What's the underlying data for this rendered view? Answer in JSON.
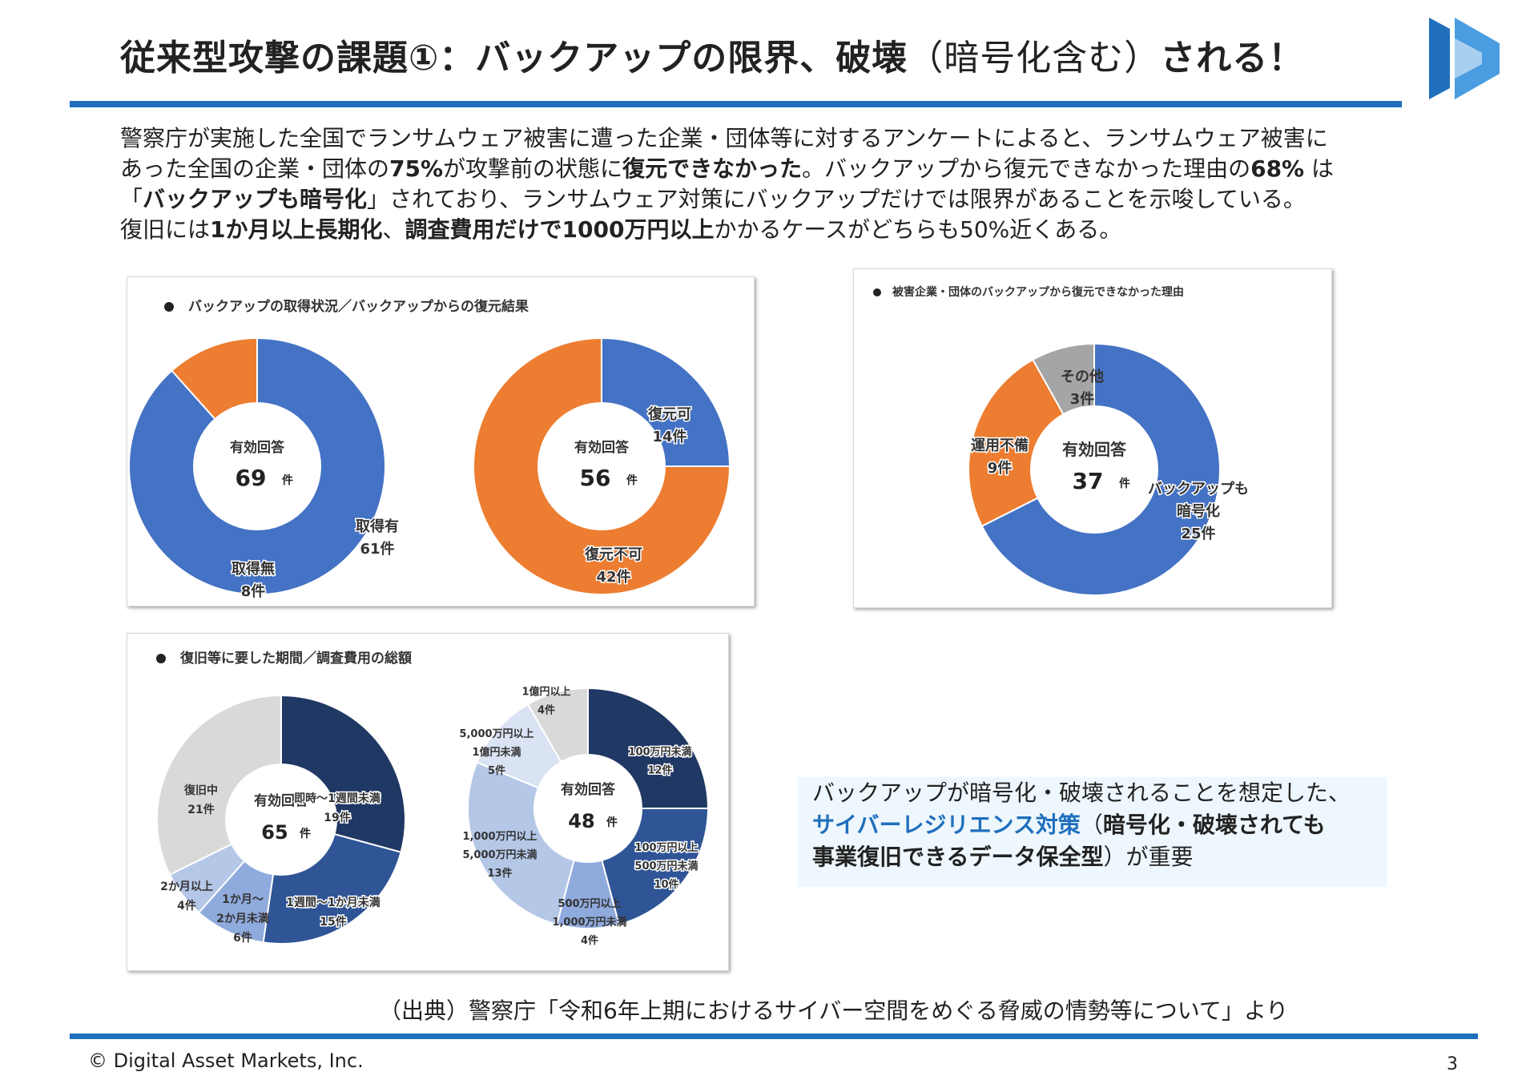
{
  "header": {
    "title_bold_1": "従来型攻撃の課題①：バックアップの限界、破壊",
    "title_normal": "（暗号化含む）",
    "title_bold_2": "される！"
  },
  "intro": {
    "line1": "警察庁が実施した全国でランサムウェア被害に遭った企業・団体等に対するアンケートによると、ランサムウェア被害に",
    "line2_a": "あった全国の企業・団体の",
    "line2_b": "75%",
    "line2_c": "が攻撃前の状態に",
    "line2_d": "復元できなかった",
    "line2_e": "。バックアップから復元できなかった理由の",
    "line2_f": "68%",
    "line2_g": " は",
    "line3_a": "「",
    "line3_b": "バックアップも暗号化",
    "line3_c": "」されており、ランサムウェア対策にバックアップだけでは限界があることを示唆している。",
    "line4_a": "復旧には",
    "line4_b": "1か月以上長期化",
    "line4_c": "、",
    "line4_d": "調査費用だけで1000万円以上",
    "line4_e": "かかるケースがどちらも50%近くある。"
  },
  "panels": {
    "backup_title": "バックアップの取得状況／バックアップからの復元結果",
    "reason_title": "被害企業・団体のバックアップから復元できなかった理由",
    "recovery_title": "復旧等に要した期間／調査費用の総額"
  },
  "chart_data": [
    {
      "type": "pie",
      "donut": true,
      "center_label": "有効回答",
      "center_value": "69",
      "center_unit": "件",
      "slices": [
        {
          "label": "取得有",
          "value": 61,
          "value_text": "61件",
          "color": "#4472c4"
        },
        {
          "label": "取得無",
          "value": 8,
          "value_text": "8件",
          "color": "#ed7d31"
        }
      ]
    },
    {
      "type": "pie",
      "donut": true,
      "center_label": "有効回答",
      "center_value": "56",
      "center_unit": "件",
      "slices": [
        {
          "label": "復元可",
          "value": 14,
          "value_text": "14件",
          "color": "#4472c4"
        },
        {
          "label": "復元不可",
          "value": 42,
          "value_text": "42件",
          "color": "#ed7d31"
        }
      ]
    },
    {
      "type": "pie",
      "donut": true,
      "center_label": "有効回答",
      "center_value": "37",
      "center_unit": "件",
      "slices": [
        {
          "label": "バックアップも暗号化",
          "label_line1": "バックアップも",
          "label_line2": "暗号化",
          "value": 25,
          "value_text": "25件",
          "color": "#4472c4"
        },
        {
          "label": "運用不備",
          "value": 9,
          "value_text": "9件",
          "color": "#ed7d31"
        },
        {
          "label": "その他",
          "value": 3,
          "value_text": "3件",
          "color": "#a5a5a5"
        }
      ]
    },
    {
      "type": "pie",
      "donut": true,
      "center_label": "有効回答",
      "center_value": "65",
      "center_unit": "件",
      "slices": [
        {
          "label": "即時～1週間未満",
          "value": 19,
          "value_text": "19件",
          "color": "#203864"
        },
        {
          "label": "1週間～1か月未満",
          "value": 15,
          "value_text": "15件",
          "color": "#2f5597"
        },
        {
          "label": "1か月～2か月未満",
          "label_line1": "1か月～",
          "label_line2": "2か月未満",
          "value": 6,
          "value_text": "6件",
          "color": "#8faadc"
        },
        {
          "label": "2か月以上",
          "value": 4,
          "value_text": "4件",
          "color": "#b4c7e7"
        },
        {
          "label": "復旧中",
          "value": 21,
          "value_text": "21件",
          "color": "#d9d9d9"
        }
      ]
    },
    {
      "type": "pie",
      "donut": true,
      "center_label": "有効回答",
      "center_value": "48",
      "center_unit": "件",
      "slices": [
        {
          "label": "100万円未満",
          "value": 12,
          "value_text": "12件",
          "color": "#203864"
        },
        {
          "label": "100万円以上500万円未満",
          "label_line1": "100万円以上",
          "label_line2": "500万円未満",
          "value": 10,
          "value_text": "10件",
          "color": "#2f5597"
        },
        {
          "label": "500万円以上1,000万円未満",
          "label_line1": "500万円以上",
          "label_line2": "1,000万円未満",
          "value": 4,
          "value_text": "4件",
          "color": "#8faadc"
        },
        {
          "label": "1,000万円以上5,000万円未満",
          "label_line1": "1,000万円以上",
          "label_line2": "5,000万円未満",
          "value": 13,
          "value_text": "13件",
          "color": "#b4c7e7"
        },
        {
          "label": "5,000万円以上1億円未満",
          "label_line1": "5,000万円以上",
          "label_line2": "1億円未満",
          "value": 5,
          "value_text": "5件",
          "color": "#dae3f3"
        },
        {
          "label": "1億円以上",
          "value": 4,
          "value_text": "4件",
          "color": "#d9d9d9"
        }
      ]
    }
  ],
  "callout": {
    "line1": "バックアップが暗号化・破壊されることを想定した、",
    "line2_blue": "サイバーレジリエンス対策",
    "line2_rest": "（",
    "line2_bold": "暗号化・破壊されても",
    "line3_bold": "事業復旧できるデータ保全型",
    "line3_rest": "）が重要"
  },
  "source": "（出典）警察庁「令和6年上期におけるサイバー空間をめぐる脅威の情勢等について」より",
  "footer": {
    "copyright": "© Digital Asset Markets, Inc.",
    "page": "3"
  },
  "colors": {
    "accent": "#1f6fbd",
    "blue": "#4472c4",
    "orange": "#ed7d31",
    "gray": "#a5a5a5"
  }
}
